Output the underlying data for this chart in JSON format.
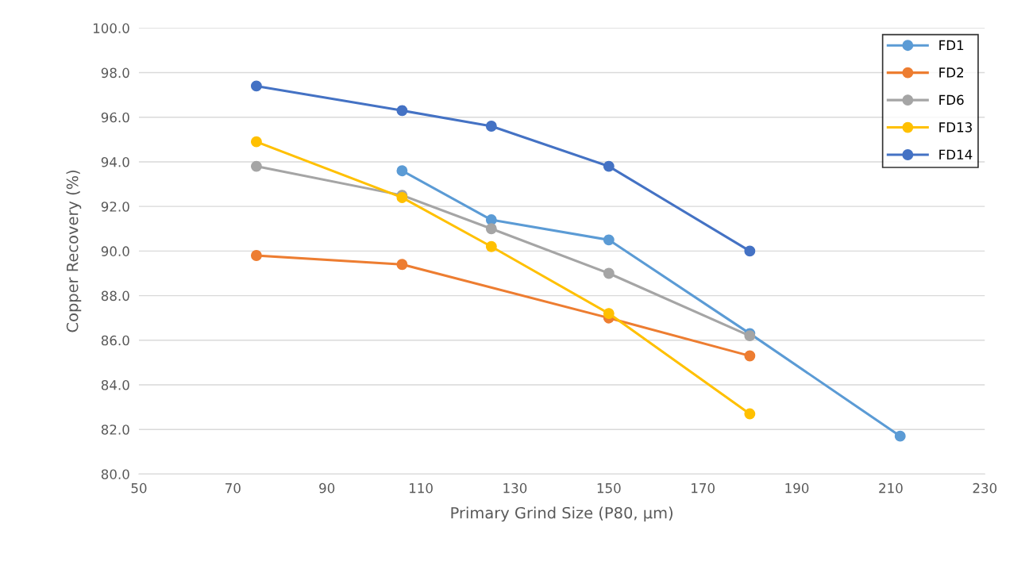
{
  "chart_data": {
    "type": "line",
    "xlabel": "Primary Grind Size (P80, µm)",
    "ylabel": "Copper Recovery (%)",
    "xlim": [
      50,
      230
    ],
    "xticks": [
      50,
      70,
      90,
      110,
      130,
      150,
      170,
      190,
      210,
      230
    ],
    "ylim": [
      80,
      100
    ],
    "yticks": [
      {
        "value": 80,
        "label": "80.0"
      },
      {
        "value": 82,
        "label": "82.0"
      },
      {
        "value": 84,
        "label": "84.0"
      },
      {
        "value": 86,
        "label": "86.0"
      },
      {
        "value": 88,
        "label": "88.0"
      },
      {
        "value": 90,
        "label": "90.0"
      },
      {
        "value": 92,
        "label": "92.0"
      },
      {
        "value": 94,
        "label": "94.0"
      },
      {
        "value": 96,
        "label": "96.0"
      },
      {
        "value": 98,
        "label": "98.0"
      },
      {
        "value": 100,
        "label": "100.0"
      }
    ],
    "grid": "y",
    "legend": "top right",
    "marker": "circle",
    "series": [
      {
        "name": "FD1",
        "color": "#5b9bd5",
        "x": [
          106,
          125,
          150,
          180,
          212
        ],
        "values": [
          93.6,
          91.4,
          90.5,
          86.3,
          81.7
        ]
      },
      {
        "name": "FD2",
        "color": "#ed7d31",
        "x": [
          75,
          106,
          150,
          180
        ],
        "values": [
          89.8,
          89.4,
          87.0,
          85.3
        ]
      },
      {
        "name": "FD6",
        "color": "#a5a5a5",
        "x": [
          75,
          106,
          125,
          150,
          180
        ],
        "values": [
          93.8,
          92.5,
          91.0,
          89.0,
          86.2
        ]
      },
      {
        "name": "FD13",
        "color": "#ffc000",
        "x": [
          75,
          106,
          125,
          150,
          180
        ],
        "values": [
          94.9,
          92.4,
          90.2,
          87.2,
          82.7
        ]
      },
      {
        "name": "FD14",
        "color": "#4472c4",
        "x": [
          75,
          106,
          125,
          150,
          180
        ],
        "values": [
          97.4,
          96.3,
          95.6,
          93.8,
          90.0
        ]
      }
    ]
  }
}
